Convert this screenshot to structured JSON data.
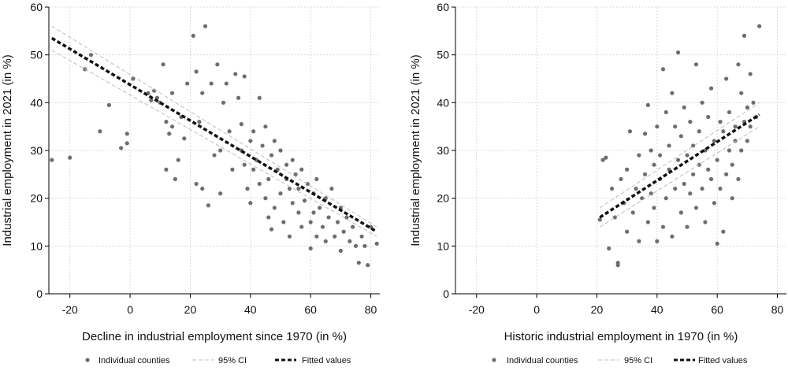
{
  "chart_data": [
    {
      "type": "scatter",
      "xlabel": "Decline in industrial employment since 1970 (in %)",
      "ylabel": "Industrial employment in 2021 (in %)",
      "xlim": [
        -27,
        83
      ],
      "ylim": [
        0,
        60
      ],
      "xticks": [
        -20,
        0,
        20,
        40,
        60,
        80
      ],
      "yticks": [
        0,
        10,
        20,
        30,
        40,
        50,
        60
      ],
      "grid": true,
      "legend_position": "bottom",
      "series": [
        {
          "name": "Individual counties",
          "kind": "points",
          "color": "#6e6e6e",
          "points": [
            [
              -26,
              28
            ],
            [
              -20,
              28.5
            ],
            [
              -15,
              47
            ],
            [
              -13,
              50
            ],
            [
              -10,
              34
            ],
            [
              -7,
              39.5
            ],
            [
              -3,
              30.5
            ],
            [
              -1,
              31.5
            ],
            [
              -1,
              33.5
            ],
            [
              1,
              45
            ],
            [
              6,
              42
            ],
            [
              7,
              40.5
            ],
            [
              8,
              42.5
            ],
            [
              9,
              41
            ],
            [
              10,
              40
            ],
            [
              11,
              48
            ],
            [
              12,
              36
            ],
            [
              12,
              26
            ],
            [
              13,
              33.5
            ],
            [
              14,
              42
            ],
            [
              14,
              35
            ],
            [
              15,
              24
            ],
            [
              16,
              28
            ],
            [
              17,
              37
            ],
            [
              18,
              32.5
            ],
            [
              19,
              44
            ],
            [
              21,
              54
            ],
            [
              22,
              46.5
            ],
            [
              22,
              23
            ],
            [
              23,
              36
            ],
            [
              24,
              42
            ],
            [
              24,
              22
            ],
            [
              25,
              56
            ],
            [
              26,
              18.5
            ],
            [
              27,
              44
            ],
            [
              28,
              29
            ],
            [
              29,
              48
            ],
            [
              30,
              30
            ],
            [
              30,
              21
            ],
            [
              31,
              40
            ],
            [
              32,
              44
            ],
            [
              33,
              34
            ],
            [
              34,
              26
            ],
            [
              35,
              46
            ],
            [
              36,
              41
            ],
            [
              37,
              30
            ],
            [
              37,
              35.5
            ],
            [
              38,
              27
            ],
            [
              38,
              45.5
            ],
            [
              39,
              22
            ],
            [
              40,
              32
            ],
            [
              40,
              19
            ],
            [
              41,
              34
            ],
            [
              41,
              26
            ],
            [
              42,
              28
            ],
            [
              43,
              41
            ],
            [
              43,
              23
            ],
            [
              44,
              31
            ],
            [
              45,
              35
            ],
            [
              45,
              20
            ],
            [
              46,
              16
            ],
            [
              46,
              24
            ],
            [
              47,
              29
            ],
            [
              47,
              13.5
            ],
            [
              48,
              32
            ],
            [
              48,
              18
            ],
            [
              49,
              26
            ],
            [
              50,
              21
            ],
            [
              50,
              30
            ],
            [
              51,
              15
            ],
            [
              52,
              24
            ],
            [
              52,
              27
            ],
            [
              53,
              12
            ],
            [
              53,
              22
            ],
            [
              54,
              28
            ],
            [
              54,
              19
            ],
            [
              55,
              25
            ],
            [
              56,
              17
            ],
            [
              56,
              22
            ],
            [
              57,
              14
            ],
            [
              57,
              26
            ],
            [
              58,
              19.5
            ],
            [
              59,
              23
            ],
            [
              60,
              15
            ],
            [
              60,
              9.5
            ],
            [
              61,
              21
            ],
            [
              61,
              17
            ],
            [
              62,
              24
            ],
            [
              62,
              12
            ],
            [
              63,
              18
            ],
            [
              64,
              14
            ],
            [
              65,
              20
            ],
            [
              65,
              11
            ],
            [
              66,
              16
            ],
            [
              67,
              22
            ],
            [
              68,
              12
            ],
            [
              69,
              15
            ],
            [
              70,
              9
            ],
            [
              70,
              18
            ],
            [
              71,
              13
            ],
            [
              72,
              16
            ],
            [
              73,
              11
            ],
            [
              74,
              14
            ],
            [
              75,
              10
            ],
            [
              76,
              6.5
            ],
            [
              77,
              12
            ],
            [
              78,
              10
            ],
            [
              79,
              6
            ],
            [
              80,
              14
            ],
            [
              82,
              10.5
            ]
          ]
        },
        {
          "name": "95% CI",
          "kind": "band",
          "color": "#bdbdbd",
          "upper": [
            [
              -26,
              56
            ],
            [
              82,
              14
            ]
          ],
          "lower": [
            [
              -26,
              51
            ],
            [
              82,
              12
            ]
          ]
        },
        {
          "name": "Fitted values",
          "kind": "line",
          "color": "#111111",
          "points": [
            [
              -26,
              53.5
            ],
            [
              82,
              13
            ]
          ]
        }
      ]
    },
    {
      "type": "scatter",
      "xlabel": "Historic industrial employment in 1970 (in %)",
      "ylabel": "Industrial employment in 2021 (in %)",
      "xlim": [
        -27,
        83
      ],
      "ylim": [
        0,
        60
      ],
      "xticks": [
        -20,
        0,
        20,
        40,
        60,
        80
      ],
      "yticks": [
        0,
        10,
        20,
        30,
        40,
        50,
        60
      ],
      "grid": true,
      "legend_position": "bottom",
      "series": [
        {
          "name": "Individual counties",
          "kind": "points",
          "color": "#6e6e6e",
          "points": [
            [
              21,
              15.5
            ],
            [
              22,
              28
            ],
            [
              23,
              28.5
            ],
            [
              24,
              9.5
            ],
            [
              25,
              22
            ],
            [
              26,
              16
            ],
            [
              27,
              6.5
            ],
            [
              27,
              6
            ],
            [
              28,
              24
            ],
            [
              29,
              19
            ],
            [
              30,
              13
            ],
            [
              30,
              26
            ],
            [
              31,
              34
            ],
            [
              32,
              17
            ],
            [
              33,
              22
            ],
            [
              34,
              29
            ],
            [
              34,
              11
            ],
            [
              35,
              20
            ],
            [
              36,
              25
            ],
            [
              36,
              33.5
            ],
            [
              37,
              39.5
            ],
            [
              37,
              15
            ],
            [
              38,
              30
            ],
            [
              38,
              21
            ],
            [
              39,
              18
            ],
            [
              39,
              27
            ],
            [
              40,
              35
            ],
            [
              40,
              11
            ],
            [
              41,
              24
            ],
            [
              41,
              29
            ],
            [
              42,
              47
            ],
            [
              42,
              14
            ],
            [
              43,
              38
            ],
            [
              43,
              20
            ],
            [
              44,
              31
            ],
            [
              44,
              26
            ],
            [
              45,
              42
            ],
            [
              45,
              12
            ],
            [
              46,
              35
            ],
            [
              46,
              22
            ],
            [
              47,
              50.5
            ],
            [
              47,
              28
            ],
            [
              48,
              17
            ],
            [
              48,
              33
            ],
            [
              49,
              23
            ],
            [
              49,
              39
            ],
            [
              50,
              29
            ],
            [
              50,
              14
            ],
            [
              51,
              36
            ],
            [
              51,
              21
            ],
            [
              52,
              25
            ],
            [
              52,
              31
            ],
            [
              53,
              48
            ],
            [
              53,
              18
            ],
            [
              54,
              34
            ],
            [
              54,
              27
            ],
            [
              55,
              22
            ],
            [
              55,
              40
            ],
            [
              56,
              30
            ],
            [
              56,
              15
            ],
            [
              57,
              37
            ],
            [
              57,
              26
            ],
            [
              58,
              24
            ],
            [
              58,
              43
            ],
            [
              59,
              32
            ],
            [
              59,
              19
            ],
            [
              60,
              28
            ],
            [
              60,
              10.5
            ],
            [
              61,
              36
            ],
            [
              61,
              22
            ],
            [
              62,
              34
            ],
            [
              62,
              13
            ],
            [
              63,
              45
            ],
            [
              63,
              25
            ],
            [
              64,
              38
            ],
            [
              64,
              30
            ],
            [
              65,
              27
            ],
            [
              65,
              20
            ],
            [
              66,
              32
            ],
            [
              66,
              35
            ],
            [
              67,
              48
            ],
            [
              67,
              24
            ],
            [
              68,
              42
            ],
            [
              68,
              30
            ],
            [
              69,
              54
            ],
            [
              69,
              36
            ],
            [
              70,
              39
            ],
            [
              70,
              32
            ],
            [
              71,
              46
            ],
            [
              71,
              35
            ],
            [
              72,
              40
            ],
            [
              73,
              37
            ],
            [
              74,
              56
            ]
          ]
        },
        {
          "name": "95% CI",
          "kind": "band",
          "color": "#bdbdbd",
          "upper": [
            [
              21,
              18
            ],
            [
              74,
              40
            ]
          ],
          "lower": [
            [
              21,
              14
            ],
            [
              74,
              35
            ]
          ]
        },
        {
          "name": "Fitted values",
          "kind": "line",
          "color": "#111111",
          "points": [
            [
              21,
              16
            ],
            [
              74,
              37.5
            ]
          ]
        }
      ]
    }
  ]
}
